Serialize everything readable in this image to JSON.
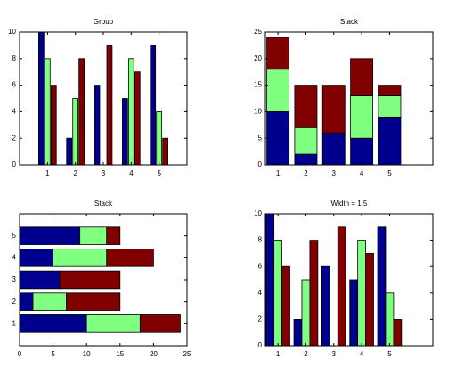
{
  "chart_data": [
    {
      "type": "bar",
      "title": "Group",
      "orientation": "vertical",
      "stacked": false,
      "bar_width": 0.8,
      "x": [
        1,
        2,
        3,
        4,
        5
      ],
      "xlim": [
        0,
        6
      ],
      "ylim": [
        0,
        10
      ],
      "yticks": [
        0,
        2,
        4,
        6,
        8,
        10
      ],
      "series": [
        {
          "color": "#00008f",
          "values": [
            10,
            2,
            6,
            5,
            9
          ]
        },
        {
          "color": "#80ff80",
          "values": [
            8,
            5,
            0,
            8,
            4
          ]
        },
        {
          "color": "#800000",
          "values": [
            6,
            8,
            9,
            7,
            2
          ]
        }
      ]
    },
    {
      "type": "bar",
      "title": "Stack",
      "orientation": "vertical",
      "stacked": true,
      "bar_width": 0.8,
      "x": [
        1,
        2,
        3,
        4,
        5
      ],
      "xlim": [
        0.55,
        6.55
      ],
      "ylim": [
        0,
        25
      ],
      "yticks": [
        0,
        5,
        10,
        15,
        20,
        25
      ],
      "series": [
        {
          "color": "#00008f",
          "values": [
            10,
            2,
            6,
            5,
            9
          ]
        },
        {
          "color": "#80ff80",
          "values": [
            8,
            5,
            0,
            8,
            4
          ]
        },
        {
          "color": "#800000",
          "values": [
            6,
            8,
            9,
            7,
            2
          ]
        }
      ]
    },
    {
      "type": "bar",
      "title": "Stack",
      "orientation": "horizontal",
      "stacked": true,
      "bar_width": 0.8,
      "y": [
        1,
        2,
        3,
        4,
        5
      ],
      "ylim": [
        0,
        6
      ],
      "xlim": [
        0,
        25
      ],
      "xticks": [
        0,
        5,
        10,
        15,
        20,
        25
      ],
      "series": [
        {
          "color": "#00008f",
          "values": [
            10,
            2,
            6,
            5,
            9
          ]
        },
        {
          "color": "#80ff80",
          "values": [
            8,
            5,
            0,
            8,
            4
          ]
        },
        {
          "color": "#800000",
          "values": [
            6,
            8,
            9,
            7,
            2
          ]
        }
      ]
    },
    {
      "type": "bar",
      "title": "Width = 1.5",
      "orientation": "vertical",
      "stacked": false,
      "bar_width": 1.5,
      "x": [
        1,
        2,
        3,
        4,
        5
      ],
      "xlim": [
        0.55,
        6.55
      ],
      "ylim": [
        0,
        10
      ],
      "yticks": [
        0,
        2,
        4,
        6,
        8,
        10
      ],
      "series": [
        {
          "color": "#00008f",
          "values": [
            10,
            2,
            6,
            5,
            9
          ]
        },
        {
          "color": "#80ff80",
          "values": [
            8,
            5,
            0,
            8,
            4
          ]
        },
        {
          "color": "#800000",
          "values": [
            6,
            8,
            9,
            7,
            2
          ]
        }
      ]
    }
  ]
}
